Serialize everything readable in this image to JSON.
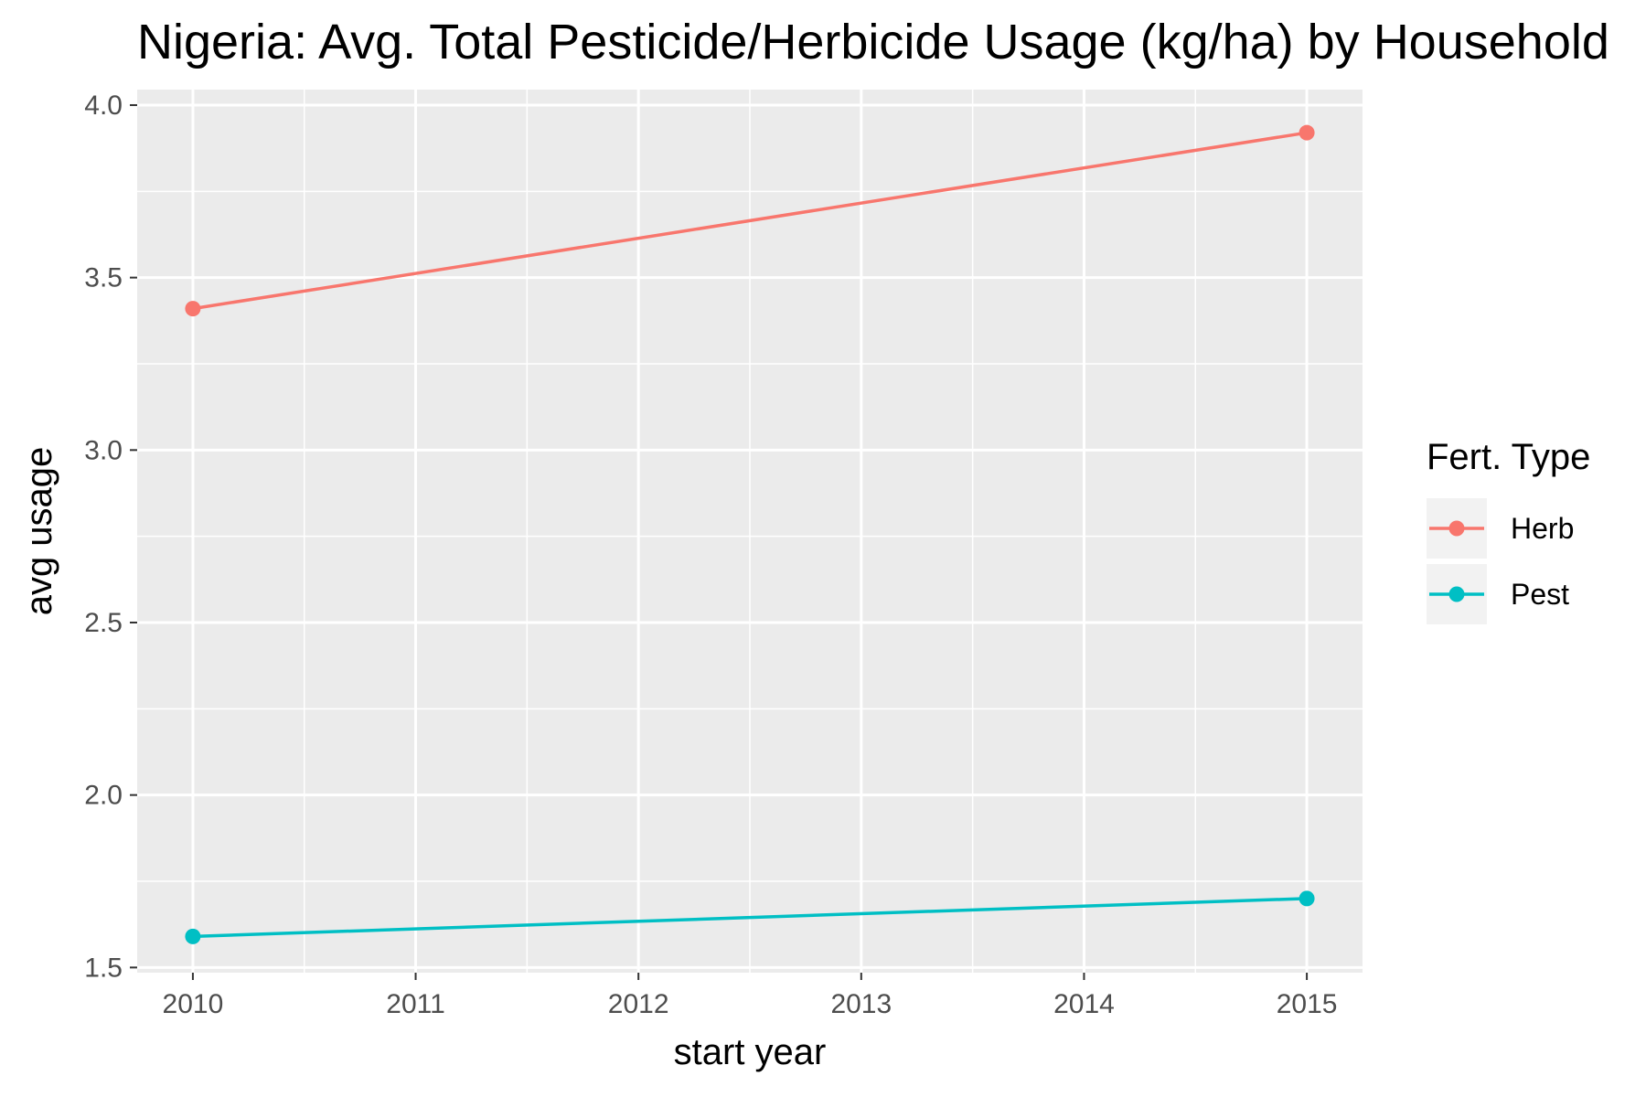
{
  "chart_data": {
    "type": "line",
    "title": "Nigeria: Avg. Total Pesticide/Herbicide Usage (kg/ha) by Household",
    "xlabel": "start year",
    "ylabel": "avg usage",
    "xlim": [
      2009.75,
      2015.25
    ],
    "ylim": [
      1.485,
      4.045
    ],
    "x_ticks": [
      "2010",
      "2011",
      "2012",
      "2013",
      "2014",
      "2015"
    ],
    "y_ticks": [
      "1.5",
      "2.0",
      "2.5",
      "3.0",
      "3.5",
      "4.0"
    ],
    "grid": true,
    "legend_title": "Fert. Type",
    "legend_position": "right",
    "series": [
      {
        "name": "Herb",
        "color": "#F8766D",
        "x": [
          2010,
          2015
        ],
        "y": [
          3.41,
          3.92
        ]
      },
      {
        "name": "Pest",
        "color": "#00BFC4",
        "x": [
          2010,
          2015
        ],
        "y": [
          1.59,
          1.7
        ]
      }
    ],
    "panel_background": "#EBEBEB",
    "grid_color": "#FFFFFF"
  }
}
